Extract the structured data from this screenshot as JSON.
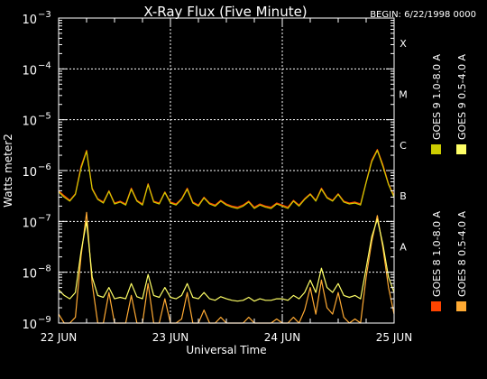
{
  "chart_data": {
    "type": "line",
    "title": "X-Ray Flux (Five Minute)",
    "begin_label": "BEGIN: 6/22/1998 0000",
    "xlabel": "Universal Time",
    "ylabel": "Watts meter2",
    "y_scale": "log",
    "ylim": [
      1e-09,
      0.001
    ],
    "xlim_days": [
      0,
      3
    ],
    "x_tick_labels": [
      "22 JUN",
      "23 JUN",
      "24 JUN",
      "25 JUN"
    ],
    "y_tick_labels": [
      {
        "base": "10",
        "exp": "−9"
      },
      {
        "base": "10",
        "exp": "−8"
      },
      {
        "base": "10",
        "exp": "−7"
      },
      {
        "base": "10",
        "exp": "−6"
      },
      {
        "base": "10",
        "exp": "−5"
      },
      {
        "base": "10",
        "exp": "−4"
      },
      {
        "base": "10",
        "exp": "−3"
      }
    ],
    "flare_classes": [
      {
        "label": "A",
        "flux": 1e-08
      },
      {
        "label": "B",
        "flux": 1e-07
      },
      {
        "label": "C",
        "flux": 1e-06
      },
      {
        "label": "M",
        "flux": 1e-05
      },
      {
        "label": "X",
        "flux": 0.0001
      }
    ],
    "grid": true,
    "x_sample_days": [
      0.0,
      0.05,
      0.1,
      0.15,
      0.2,
      0.25,
      0.3,
      0.35,
      0.4,
      0.45,
      0.5,
      0.55,
      0.6,
      0.65,
      0.7,
      0.75,
      0.8,
      0.85,
      0.9,
      0.95,
      1.0,
      1.05,
      1.1,
      1.15,
      1.2,
      1.25,
      1.3,
      1.35,
      1.4,
      1.45,
      1.5,
      1.55,
      1.6,
      1.65,
      1.7,
      1.75,
      1.8,
      1.85,
      1.9,
      1.95,
      2.0,
      2.05,
      2.1,
      2.15,
      2.2,
      2.25,
      2.3,
      2.35,
      2.4,
      2.45,
      2.5,
      2.55,
      2.6,
      2.65,
      2.7,
      2.75,
      2.8,
      2.85,
      2.9,
      2.95,
      3.0
    ],
    "series": [
      {
        "name": "GOES 8 1.0-8.0 A",
        "color": "#ff4400",
        "values": [
          4e-07,
          3.2e-07,
          2.6e-07,
          3.5e-07,
          1.2e-06,
          2.5e-06,
          4.5e-07,
          2.8e-07,
          2.4e-07,
          4e-07,
          2.3e-07,
          2.5e-07,
          2.2e-07,
          4.5e-07,
          2.6e-07,
          2.2e-07,
          5.5e-07,
          2.5e-07,
          2.3e-07,
          3.8e-07,
          2.4e-07,
          2.2e-07,
          2.8e-07,
          4.5e-07,
          2.4e-07,
          2.1e-07,
          3e-07,
          2.3e-07,
          2.1e-07,
          2.6e-07,
          2.2e-07,
          2e-07,
          1.9e-07,
          2.1e-07,
          2.5e-07,
          1.9e-07,
          2.2e-07,
          2e-07,
          1.9e-07,
          2.3e-07,
          2.1e-07,
          1.9e-07,
          2.6e-07,
          2.1e-07,
          2.8e-07,
          3.5e-07,
          2.6e-07,
          4.5e-07,
          3e-07,
          2.6e-07,
          3.5e-07,
          2.5e-07,
          2.3e-07,
          2.4e-07,
          2.2e-07,
          6e-07,
          1.6e-06,
          2.6e-06,
          1.3e-06,
          5.5e-07,
          3.2e-07
        ]
      },
      {
        "name": "GOES 8 0.5-4.0 A",
        "color": "#ffaa33",
        "values": [
          1.5e-09,
          1e-09,
          1e-09,
          1.3e-09,
          2e-08,
          1.5e-07,
          6e-09,
          1e-09,
          1e-09,
          4e-09,
          1e-09,
          1e-09,
          1e-09,
          3.5e-09,
          1e-09,
          1e-09,
          6e-09,
          1e-09,
          1e-09,
          3e-09,
          1e-09,
          1e-09,
          1.2e-09,
          4e-09,
          1e-09,
          1e-09,
          1.8e-09,
          1e-09,
          1e-09,
          1.3e-09,
          1e-09,
          1e-09,
          1e-09,
          1e-09,
          1.3e-09,
          1e-09,
          1e-09,
          1e-09,
          1e-09,
          1.2e-09,
          1e-09,
          1e-09,
          1.3e-09,
          1e-09,
          1.8e-09,
          5e-09,
          1.5e-09,
          7e-09,
          2e-09,
          1.5e-09,
          4e-09,
          1.3e-09,
          1e-09,
          1.2e-09,
          1e-09,
          8e-09,
          4e-08,
          1.3e-07,
          3e-08,
          5e-09,
          1.5e-09
        ]
      },
      {
        "name": "GOES 9 1.0-8.0 A",
        "color": "#cccc00",
        "values": [
          3.8e-07,
          3e-07,
          2.5e-07,
          3.4e-07,
          1.1e-06,
          2.4e-06,
          4.3e-07,
          2.7e-07,
          2.3e-07,
          3.9e-07,
          2.2e-07,
          2.4e-07,
          2.1e-07,
          4.3e-07,
          2.5e-07,
          2.1e-07,
          5.3e-07,
          2.4e-07,
          2.2e-07,
          3.7e-07,
          2.3e-07,
          2.1e-07,
          2.7e-07,
          4.3e-07,
          2.3e-07,
          2e-07,
          2.9e-07,
          2.2e-07,
          2e-07,
          2.5e-07,
          2.1e-07,
          1.9e-07,
          1.8e-07,
          2e-07,
          2.4e-07,
          1.8e-07,
          2.1e-07,
          1.9e-07,
          1.8e-07,
          2.2e-07,
          2e-07,
          1.8e-07,
          2.5e-07,
          2e-07,
          2.7e-07,
          3.4e-07,
          2.5e-07,
          4.3e-07,
          2.9e-07,
          2.5e-07,
          3.4e-07,
          2.4e-07,
          2.2e-07,
          2.3e-07,
          2.1e-07,
          5.8e-07,
          1.5e-06,
          2.5e-06,
          1.2e-06,
          5.3e-07,
          3e-07
        ]
      },
      {
        "name": "GOES 9 0.5-4.0 A",
        "color": "#ffff66",
        "values": [
          4.5e-09,
          3.5e-09,
          3e-09,
          4e-09,
          2.5e-08,
          1e-07,
          8e-09,
          3.5e-09,
          3.2e-09,
          5e-09,
          3e-09,
          3.2e-09,
          3e-09,
          6e-09,
          3.3e-09,
          3e-09,
          9e-09,
          3.5e-09,
          3.2e-09,
          5e-09,
          3.2e-09,
          3e-09,
          3.5e-09,
          6e-09,
          3.2e-09,
          3e-09,
          4e-09,
          3e-09,
          2.8e-09,
          3.3e-09,
          3e-09,
          2.8e-09,
          2.7e-09,
          2.8e-09,
          3.2e-09,
          2.7e-09,
          3e-09,
          2.8e-09,
          2.8e-09,
          3e-09,
          3e-09,
          2.8e-09,
          3.5e-09,
          3e-09,
          4e-09,
          7e-09,
          4e-09,
          1.2e-08,
          5e-09,
          4e-09,
          6e-09,
          3.5e-09,
          3.2e-09,
          3.5e-09,
          3e-09,
          1.2e-08,
          5e-08,
          1.1e-07,
          3.5e-08,
          8e-09,
          4e-09
        ]
      }
    ]
  }
}
